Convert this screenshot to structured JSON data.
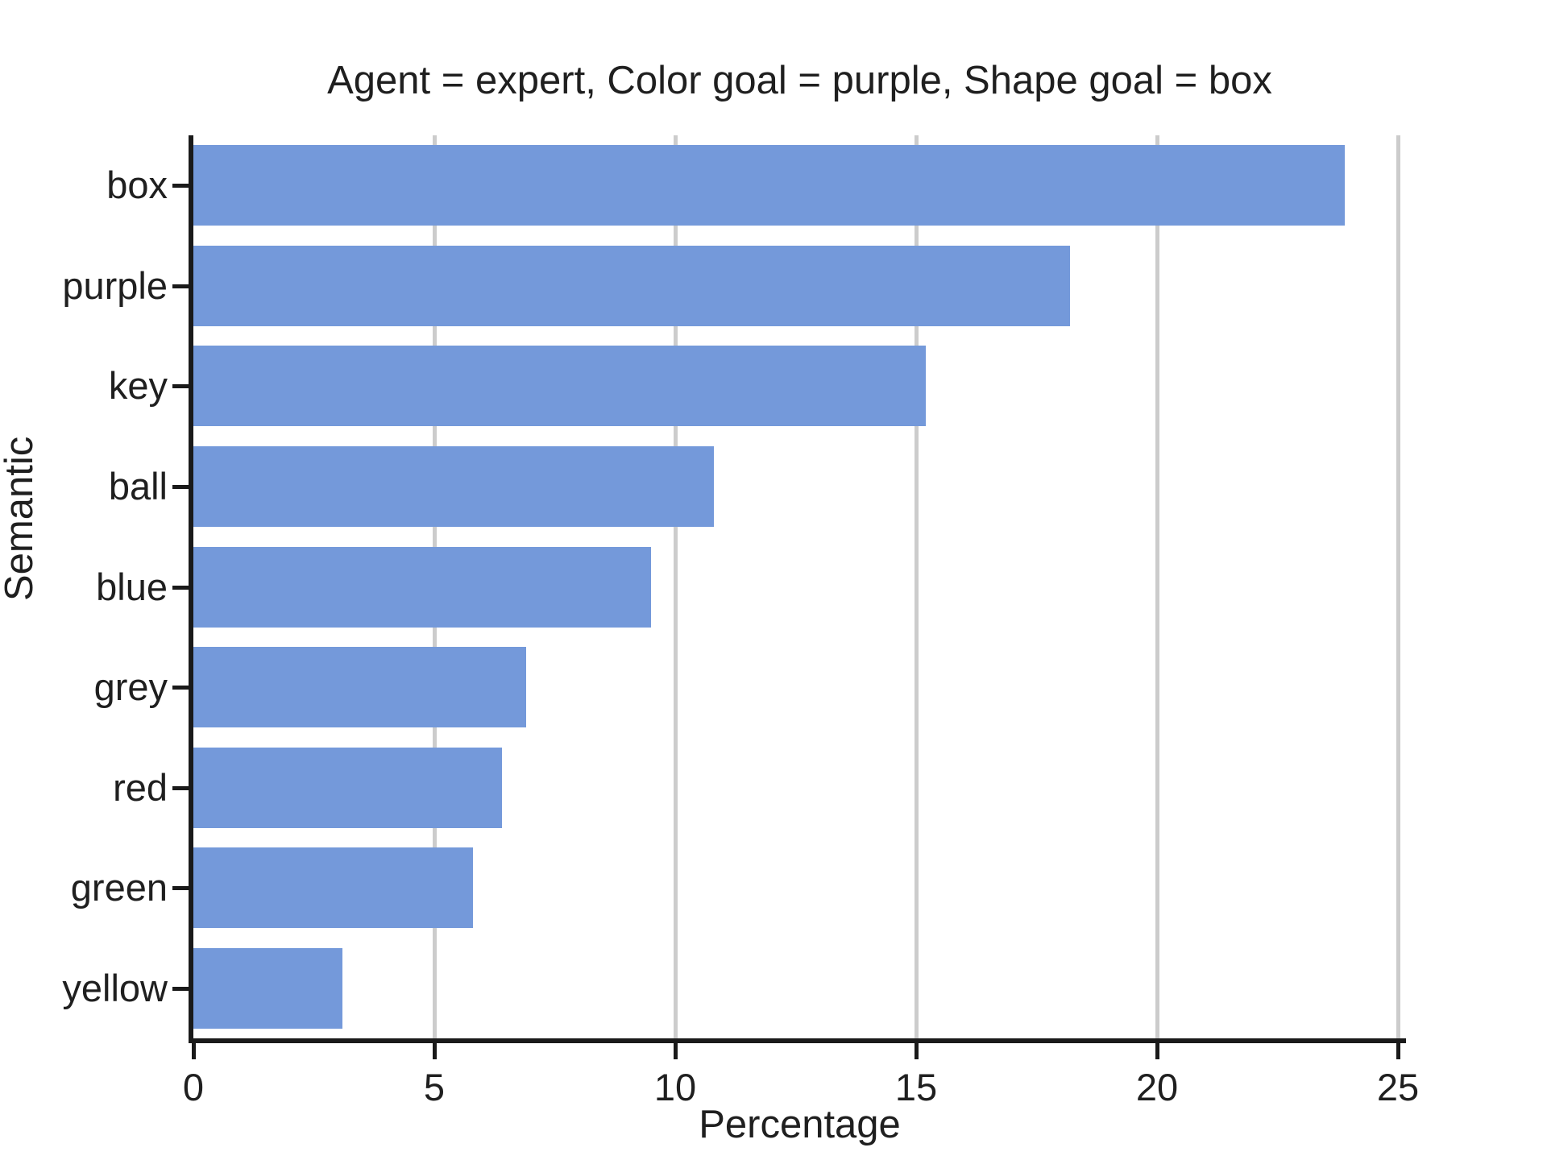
{
  "chart_data": {
    "type": "bar",
    "orientation": "horizontal",
    "title": "Agent = expert, Color goal = purple, Shape goal = box",
    "xlabel": "Percentage",
    "ylabel": "Semantic",
    "categories": [
      "box",
      "purple",
      "key",
      "ball",
      "blue",
      "grey",
      "red",
      "green",
      "yellow"
    ],
    "values": [
      23.9,
      18.2,
      15.2,
      10.8,
      9.5,
      6.9,
      6.4,
      5.8,
      3.1
    ],
    "xlim": [
      0,
      25.2
    ],
    "xticks": [
      0,
      5,
      10,
      15,
      20,
      25
    ],
    "grid": "vertical gridlines only, drawn behind bars",
    "legend": "none",
    "colors": {
      "bar_fill": "#7499da",
      "gridline": "#cccccc",
      "spine": "#1a1a1a",
      "text": "#1f1f1f",
      "background": "#ffffff"
    }
  }
}
